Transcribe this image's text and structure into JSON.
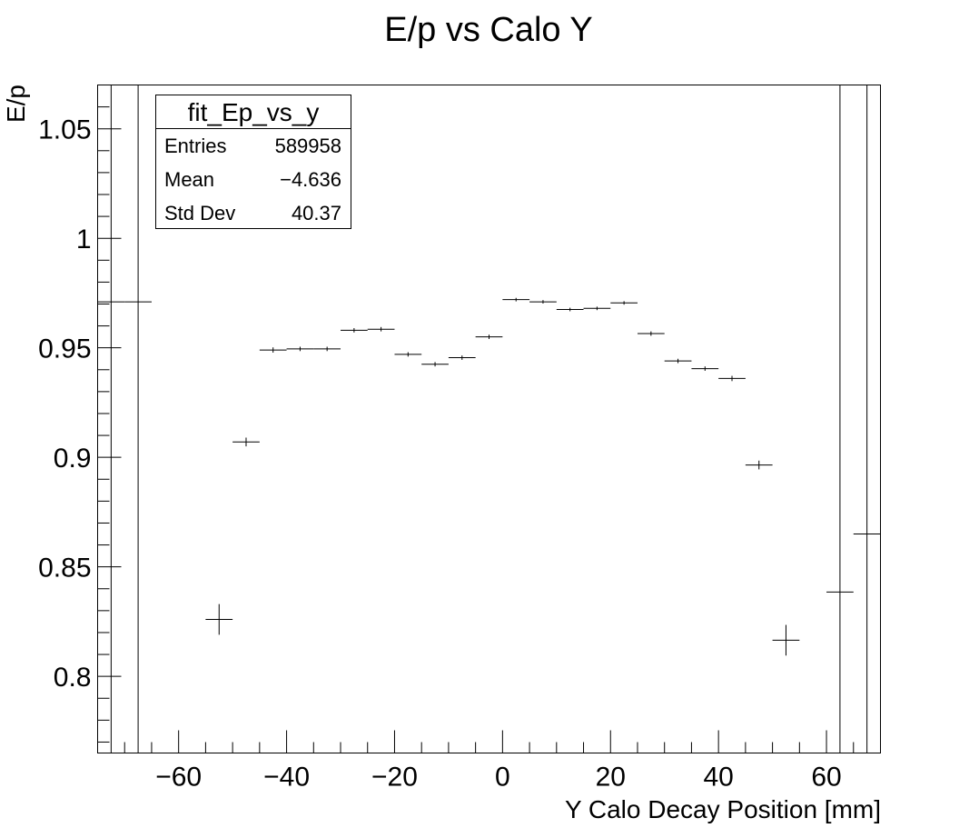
{
  "chart_data": {
    "type": "scatter",
    "title": "E/p vs Calo Y",
    "xlabel": "Y Calo Decay Position [mm]",
    "ylabel": "E/p",
    "xlim": [
      -75,
      70
    ],
    "ylim": [
      0.765,
      1.07
    ],
    "xticks": [
      -60,
      -40,
      -20,
      0,
      20,
      40,
      60
    ],
    "xtick_labels": [
      "−60",
      "−40",
      "−20",
      "0",
      "20",
      "40",
      "60"
    ],
    "yticks": [
      0.8,
      0.85,
      0.9,
      0.95,
      1,
      1.05
    ],
    "ytick_labels": [
      "0.8",
      "0.85",
      "0.9",
      "0.95",
      "1",
      "1.05"
    ],
    "grid": false,
    "series": [
      {
        "x": [
          -72.5,
          -67.5,
          -52.5,
          -47.5,
          -42.5,
          -37.5,
          -32.5,
          -27.5,
          -22.5,
          -17.5,
          -12.5,
          -7.5,
          -2.5,
          2.5,
          7.5,
          12.5,
          17.5,
          22.5,
          27.5,
          32.5,
          37.5,
          42.5,
          47.5,
          52.5,
          62.5,
          67.5
        ],
        "y": [
          0.971,
          0.971,
          0.826,
          0.907,
          0.949,
          0.9495,
          0.9495,
          0.958,
          0.9585,
          0.947,
          0.9425,
          0.9455,
          0.955,
          0.972,
          0.971,
          0.9675,
          0.968,
          0.9705,
          0.9565,
          0.944,
          0.9405,
          0.936,
          0.8965,
          0.8165,
          0.8385,
          0.865
        ],
        "y_err": [
          0.3,
          0.3,
          0.007,
          0.002,
          0.0012,
          0.001,
          0.001,
          0.001,
          0.001,
          0.001,
          0.001,
          0.001,
          0.001,
          0.0008,
          0.0008,
          0.0008,
          0.0008,
          0.0008,
          0.001,
          0.001,
          0.001,
          0.0012,
          0.002,
          0.007,
          0.3,
          0.3
        ],
        "x_err": 2.5
      }
    ]
  },
  "stats": {
    "name": "fit_Ep_vs_y",
    "rows": [
      {
        "label": "Entries",
        "value": "589958"
      },
      {
        "label": "Mean",
        "value": "−4.636"
      },
      {
        "label": "Std Dev",
        "value": "40.37"
      }
    ]
  }
}
